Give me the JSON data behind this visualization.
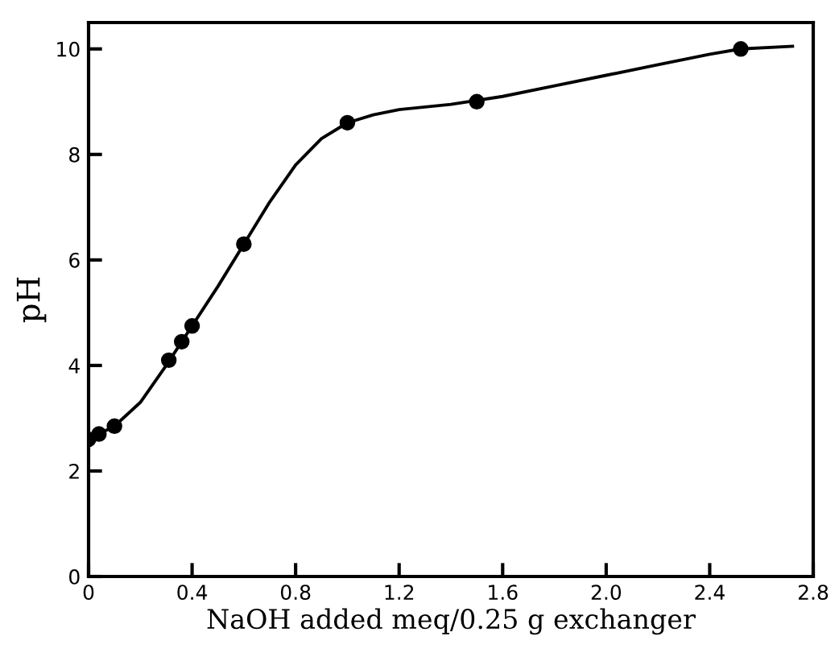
{
  "chart_data": {
    "type": "scatter",
    "xlabel": "NaOH added meq/0.25 g exchanger",
    "ylabel": "pH",
    "xlim": [
      0,
      2.8
    ],
    "ylim": [
      0,
      10.5
    ],
    "xticks": [
      0,
      0.4,
      0.8,
      1.2,
      1.6,
      {
        "value": 2.0,
        "label": "2.0"
      },
      2.4,
      2.8
    ],
    "yticks": [
      0,
      2,
      4,
      6,
      8,
      10
    ],
    "grid": false,
    "legend": false,
    "series": [
      {
        "color": "#000000",
        "marker": "circle",
        "x": [
          0,
          0.04,
          0.1,
          0.31,
          0.36,
          0.4,
          0.6,
          1.0,
          1.5,
          2.52
        ],
        "values": [
          2.6,
          2.7,
          2.85,
          4.1,
          4.45,
          4.75,
          6.3,
          8.6,
          9.0,
          10.0
        ]
      },
      {
        "type": "line",
        "color": "#000000",
        "marker": "none",
        "line_style": "solid",
        "x": [
          0,
          0.1,
          0.2,
          0.3,
          0.4,
          0.5,
          0.6,
          0.7,
          0.8,
          0.9,
          1.0,
          1.1,
          1.2,
          1.4,
          1.6,
          1.8,
          2.0,
          2.2,
          2.4,
          2.52,
          2.72
        ],
        "values": [
          2.6,
          2.85,
          3.3,
          4.0,
          4.75,
          5.5,
          6.3,
          7.1,
          7.8,
          8.3,
          8.6,
          8.75,
          8.85,
          8.95,
          9.1,
          9.3,
          9.5,
          9.7,
          9.9,
          10.0,
          10.05
        ]
      }
    ]
  }
}
